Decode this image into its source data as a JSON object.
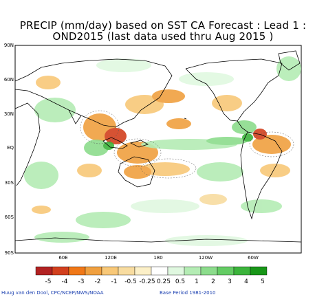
{
  "title_line1": "PRECIP (mm/day) based on SST CA Forecast : Lead 1 :",
  "title_line2": "OND2015   (last data used thru Aug 2015 )",
  "lat_labels": [
    "90N",
    "60N",
    "30N",
    "EQ",
    "30S",
    "60S",
    "90S"
  ],
  "lon_labels": [
    "60E",
    "120E",
    "180",
    "120W",
    "60W"
  ],
  "colorbar": {
    "labels": [
      "-5",
      "-4",
      "-3",
      "-2",
      "-1",
      "-0.5",
      "-0.25",
      "0.25",
      "0.5",
      "1",
      "2",
      "3",
      "4",
      "5"
    ],
    "colors": [
      "#b22222",
      "#d2401e",
      "#f07818",
      "#f0a040",
      "#f8c878",
      "#f8dca0",
      "#fcf0c8",
      "#ffffff",
      "#e0f8e0",
      "#b4ecb4",
      "#8cdc8c",
      "#64cc64",
      "#3cb43c",
      "#189618"
    ]
  },
  "footer_left": "Huug van den Dool, CPC/NCEP/NWS/NOAA",
  "footer_right": "Base Period 1981-2010",
  "colors": {
    "dry": "#f0a040",
    "wet": "#8cdc8c",
    "coast": "#000000",
    "contour": "#555555"
  }
}
